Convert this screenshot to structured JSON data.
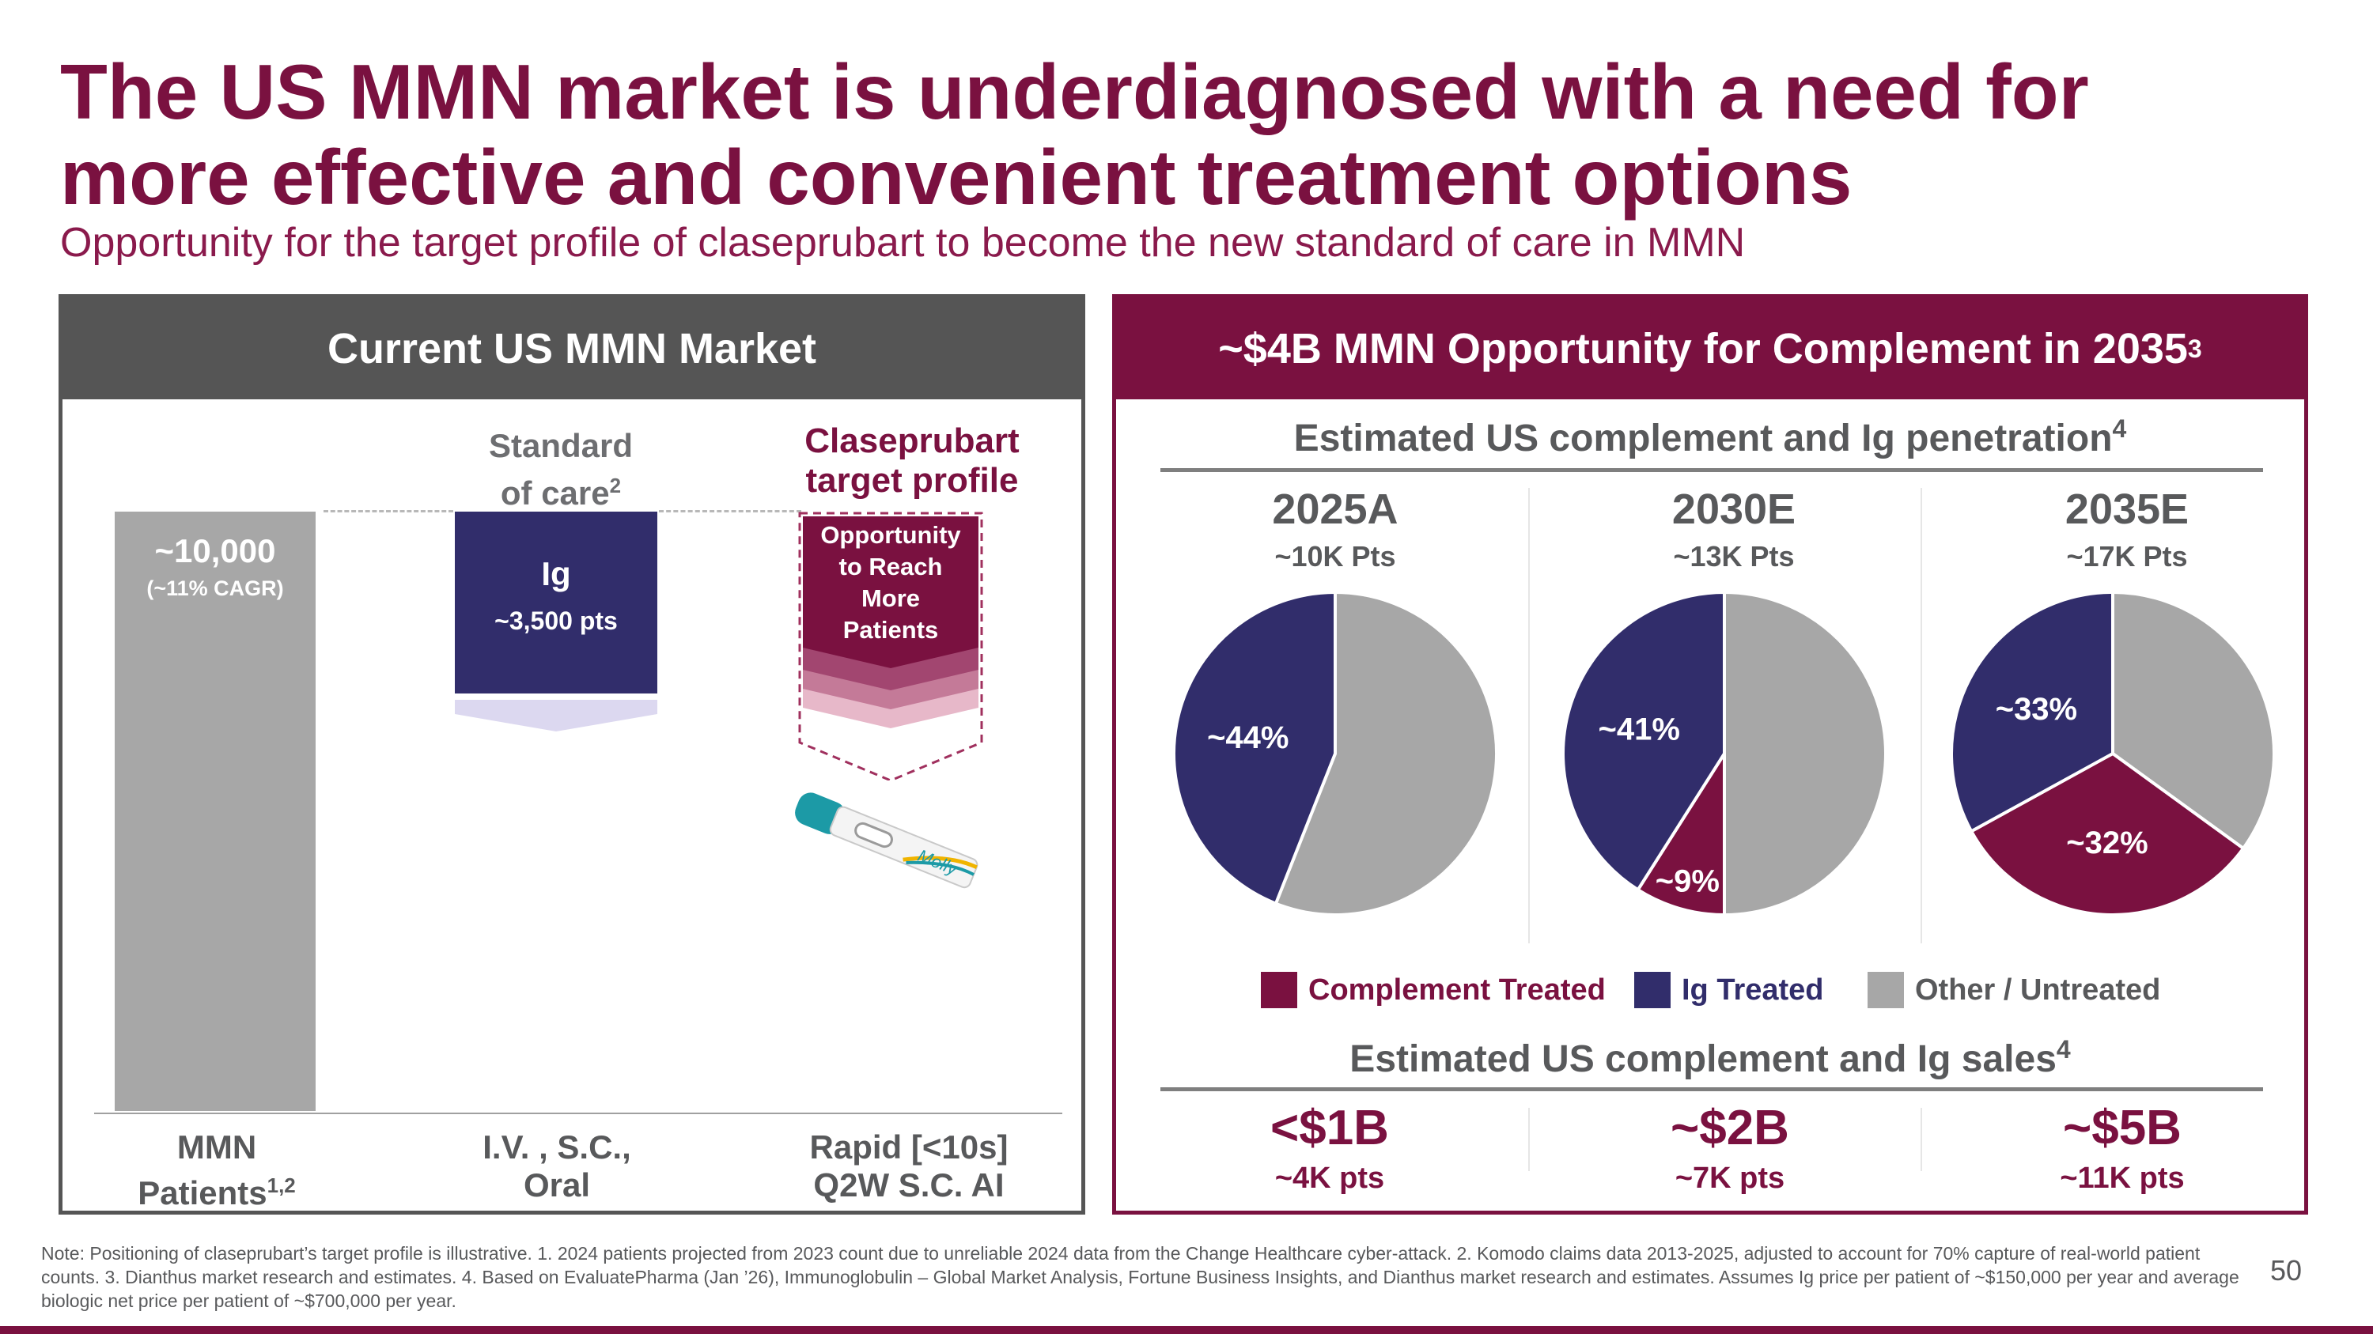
{
  "title": "The US MMN market is underdiagnosed with a need for more effective and convenient treatment options",
  "subtitle": "Opportunity for the target profile of claseprubart to become the new standard of care in MMN",
  "left_panel": {
    "header": "Current US MMN Market",
    "mmn_bar": {
      "value": "~10,000",
      "cagr": "(~11% CAGR)",
      "patients": 10000
    },
    "standard_of_care": {
      "label_line1": "Standard",
      "label_line2": "of care",
      "sup": "2",
      "box_title": "Ig",
      "box_value": "~3,500 pts",
      "patients": 3500
    },
    "target_profile": {
      "label_line1": "Claseprubart",
      "label_line2": "target profile",
      "text": [
        "Opportunity",
        "to Reach",
        "More",
        "Patients"
      ]
    },
    "device_brand": "Molly",
    "x_labels": [
      {
        "line1": "MMN",
        "line2": "Patients",
        "sup": "1,2"
      },
      {
        "line1": "I.V. , S.C.,",
        "line2": "Oral",
        "sup": ""
      },
      {
        "line1": "Rapid [<10s]",
        "line2": "Q2W S.C. AI",
        "sup": ""
      }
    ]
  },
  "right_panel": {
    "header": "~$4B MMN Opportunity for Complement in 2035",
    "header_sup": "3",
    "penetration_title": "Estimated US complement and Ig penetration",
    "penetration_sup": "4",
    "sales_title": "Estimated US complement and Ig sales",
    "sales_sup": "4",
    "colors": {
      "complement": "#7a1140",
      "ig": "#312d6b",
      "other": "#a7a7a7"
    },
    "years": [
      {
        "year": "2025A",
        "pts": "~10K Pts",
        "sales": "<$1B",
        "sales_pts": "~4K pts"
      },
      {
        "year": "2030E",
        "pts": "~13K Pts",
        "sales": "~$2B",
        "sales_pts": "~7K pts"
      },
      {
        "year": "2035E",
        "pts": "~17K Pts",
        "sales": "~$5B",
        "sales_pts": "~11K pts"
      }
    ],
    "legend": {
      "complement": "Complement Treated",
      "ig": "Ig Treated",
      "other": "Other / Untreated"
    }
  },
  "chart_data": {
    "type": "pie",
    "title": "Estimated US complement and Ig penetration",
    "series_names": [
      "Complement Treated",
      "Ig Treated",
      "Other / Untreated"
    ],
    "pies": [
      {
        "year": "2025A",
        "complement": 0,
        "ig": 44,
        "other": 56,
        "labels": {
          "complement": "",
          "ig": "~44%"
        }
      },
      {
        "year": "2030E",
        "complement": 9,
        "ig": 41,
        "other": 50,
        "labels": {
          "complement": "~9%",
          "ig": "~41%"
        }
      },
      {
        "year": "2035E",
        "complement": 32,
        "ig": 33,
        "other": 35,
        "labels": {
          "complement": "~32%",
          "ig": "~33%"
        }
      }
    ]
  },
  "footnote": "Note: Positioning of claseprubart’s target profile is illustrative. 1. 2024 patients projected from 2023 count due to unreliable 2024 data from the Change Healthcare cyber-attack. 2. Komodo claims data 2013-2025, adjusted to account for 70% capture of real-world patient counts. 3. Dianthus market research and estimates. 4. Based on EvaluatePharma (Jan ’26), Immunoglobulin – Global Market Analysis, Fortune Business Insights, and Dianthus market research and estimates. Assumes Ig price per patient of ~$150,000 per year and average biologic net price per patient of ~$700,000 per year.",
  "page_number": "50"
}
